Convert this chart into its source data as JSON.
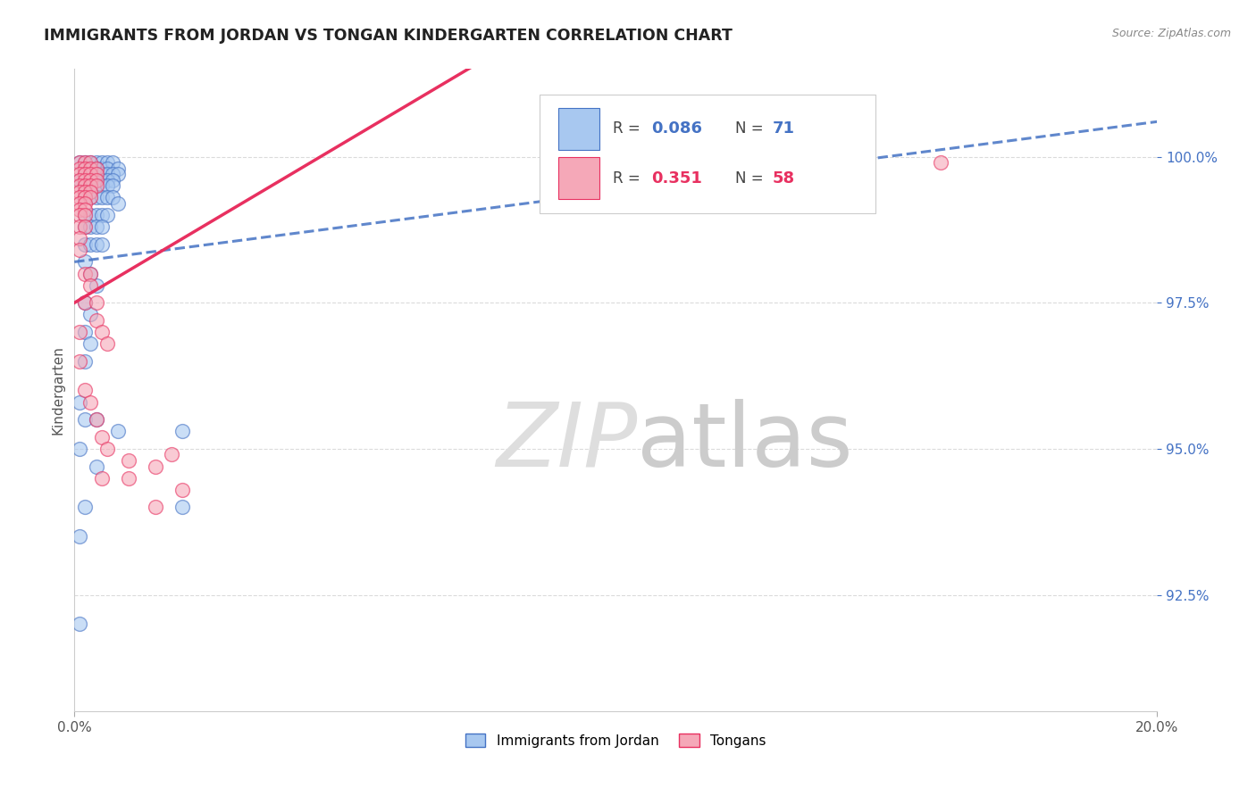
{
  "title": "IMMIGRANTS FROM JORDAN VS TONGAN KINDERGARTEN CORRELATION CHART",
  "source": "Source: ZipAtlas.com",
  "ylabel": "Kindergarten",
  "ytick_labels": [
    "92.5%",
    "95.0%",
    "97.5%",
    "100.0%"
  ],
  "ytick_values": [
    0.925,
    0.95,
    0.975,
    1.0
  ],
  "xlim": [
    0.0,
    0.2
  ],
  "ylim": [
    0.905,
    1.015
  ],
  "color_jordan": "#A8C8F0",
  "color_tongan": "#F5A8B8",
  "color_jordan_line": "#4472C4",
  "color_tongan_line": "#E83060",
  "background_color": "#FFFFFF",
  "grid_color": "#CCCCCC",
  "watermark_color": "#DEDEDE",
  "jordan_line_intercept": 0.982,
  "jordan_line_slope": 0.12,
  "tongan_line_intercept": 0.975,
  "tongan_line_slope": 0.55,
  "scatter_jordan": [
    [
      0.001,
      0.999
    ],
    [
      0.002,
      0.999
    ],
    [
      0.003,
      0.999
    ],
    [
      0.004,
      0.999
    ],
    [
      0.005,
      0.999
    ],
    [
      0.005,
      0.998
    ],
    [
      0.006,
      0.999
    ],
    [
      0.007,
      0.999
    ],
    [
      0.002,
      0.998
    ],
    [
      0.003,
      0.998
    ],
    [
      0.004,
      0.998
    ],
    [
      0.006,
      0.998
    ],
    [
      0.008,
      0.998
    ],
    [
      0.002,
      0.997
    ],
    [
      0.003,
      0.997
    ],
    [
      0.004,
      0.997
    ],
    [
      0.005,
      0.997
    ],
    [
      0.006,
      0.997
    ],
    [
      0.007,
      0.997
    ],
    [
      0.008,
      0.997
    ],
    [
      0.001,
      0.996
    ],
    [
      0.003,
      0.996
    ],
    [
      0.004,
      0.996
    ],
    [
      0.005,
      0.996
    ],
    [
      0.006,
      0.996
    ],
    [
      0.007,
      0.996
    ],
    [
      0.002,
      0.995
    ],
    [
      0.003,
      0.995
    ],
    [
      0.004,
      0.995
    ],
    [
      0.005,
      0.995
    ],
    [
      0.006,
      0.995
    ],
    [
      0.007,
      0.995
    ],
    [
      0.002,
      0.993
    ],
    [
      0.003,
      0.993
    ],
    [
      0.004,
      0.993
    ],
    [
      0.005,
      0.993
    ],
    [
      0.006,
      0.993
    ],
    [
      0.007,
      0.993
    ],
    [
      0.008,
      0.992
    ],
    [
      0.002,
      0.99
    ],
    [
      0.003,
      0.99
    ],
    [
      0.004,
      0.99
    ],
    [
      0.005,
      0.99
    ],
    [
      0.006,
      0.99
    ],
    [
      0.002,
      0.988
    ],
    [
      0.003,
      0.988
    ],
    [
      0.004,
      0.988
    ],
    [
      0.005,
      0.988
    ],
    [
      0.002,
      0.985
    ],
    [
      0.003,
      0.985
    ],
    [
      0.004,
      0.985
    ],
    [
      0.005,
      0.985
    ],
    [
      0.002,
      0.982
    ],
    [
      0.003,
      0.98
    ],
    [
      0.004,
      0.978
    ],
    [
      0.002,
      0.975
    ],
    [
      0.003,
      0.973
    ],
    [
      0.002,
      0.97
    ],
    [
      0.003,
      0.968
    ],
    [
      0.002,
      0.965
    ],
    [
      0.001,
      0.958
    ],
    [
      0.002,
      0.955
    ],
    [
      0.001,
      0.95
    ],
    [
      0.004,
      0.947
    ],
    [
      0.002,
      0.94
    ],
    [
      0.001,
      0.935
    ],
    [
      0.001,
      0.92
    ],
    [
      0.004,
      0.955
    ],
    [
      0.008,
      0.953
    ],
    [
      0.02,
      0.953
    ],
    [
      0.02,
      0.94
    ]
  ],
  "scatter_tongan": [
    [
      0.001,
      0.999
    ],
    [
      0.002,
      0.999
    ],
    [
      0.003,
      0.999
    ],
    [
      0.001,
      0.998
    ],
    [
      0.002,
      0.998
    ],
    [
      0.003,
      0.998
    ],
    [
      0.004,
      0.998
    ],
    [
      0.001,
      0.997
    ],
    [
      0.002,
      0.997
    ],
    [
      0.003,
      0.997
    ],
    [
      0.004,
      0.997
    ],
    [
      0.001,
      0.996
    ],
    [
      0.002,
      0.996
    ],
    [
      0.003,
      0.996
    ],
    [
      0.004,
      0.996
    ],
    [
      0.001,
      0.995
    ],
    [
      0.002,
      0.995
    ],
    [
      0.003,
      0.995
    ],
    [
      0.004,
      0.995
    ],
    [
      0.001,
      0.994
    ],
    [
      0.002,
      0.994
    ],
    [
      0.003,
      0.994
    ],
    [
      0.001,
      0.993
    ],
    [
      0.002,
      0.993
    ],
    [
      0.003,
      0.993
    ],
    [
      0.001,
      0.992
    ],
    [
      0.002,
      0.992
    ],
    [
      0.001,
      0.991
    ],
    [
      0.002,
      0.991
    ],
    [
      0.001,
      0.99
    ],
    [
      0.002,
      0.99
    ],
    [
      0.001,
      0.988
    ],
    [
      0.002,
      0.988
    ],
    [
      0.001,
      0.986
    ],
    [
      0.001,
      0.984
    ],
    [
      0.002,
      0.98
    ],
    [
      0.002,
      0.975
    ],
    [
      0.001,
      0.97
    ],
    [
      0.001,
      0.965
    ],
    [
      0.003,
      0.98
    ],
    [
      0.003,
      0.978
    ],
    [
      0.004,
      0.975
    ],
    [
      0.004,
      0.972
    ],
    [
      0.005,
      0.97
    ],
    [
      0.006,
      0.968
    ],
    [
      0.002,
      0.96
    ],
    [
      0.003,
      0.958
    ],
    [
      0.004,
      0.955
    ],
    [
      0.005,
      0.952
    ],
    [
      0.006,
      0.95
    ],
    [
      0.005,
      0.945
    ],
    [
      0.01,
      0.948
    ],
    [
      0.01,
      0.945
    ],
    [
      0.015,
      0.947
    ],
    [
      0.018,
      0.949
    ],
    [
      0.015,
      0.94
    ],
    [
      0.02,
      0.943
    ],
    [
      0.16,
      0.999
    ]
  ]
}
